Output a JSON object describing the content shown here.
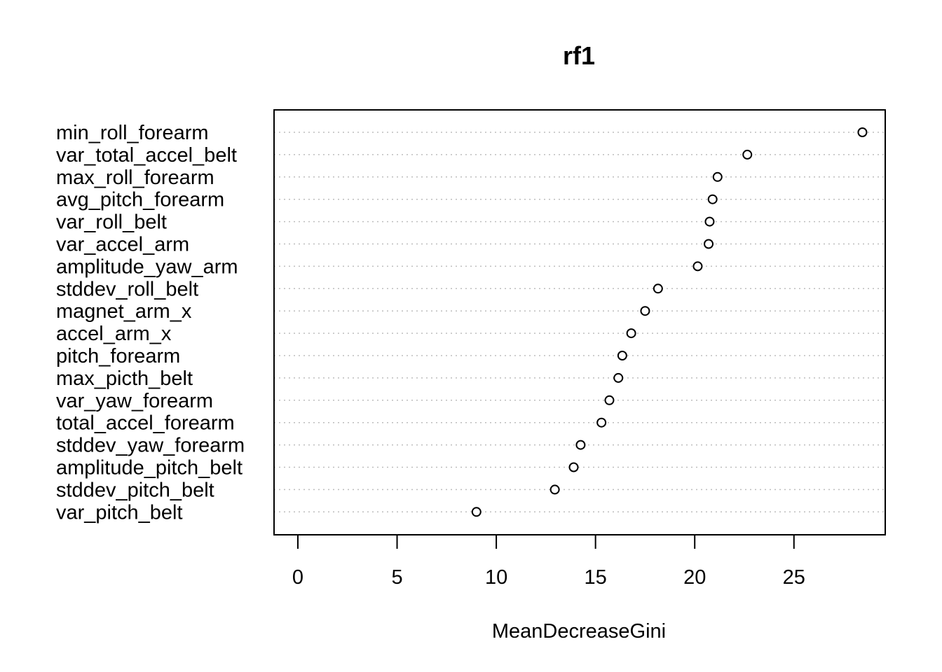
{
  "chart_data": {
    "type": "scatter",
    "title": "rf1",
    "xlabel": "MeanDecreaseGini",
    "ylabel": "",
    "xlim": [
      -1.2,
      29.6
    ],
    "xticks": [
      0,
      5,
      10,
      15,
      20,
      25
    ],
    "grid": "dotted horizontal",
    "point_style": "open circle",
    "categories": [
      "min_roll_forearm",
      "var_total_accel_belt",
      "max_roll_forearm",
      "avg_pitch_forearm",
      "var_roll_belt",
      "var_accel_arm",
      "amplitude_yaw_arm",
      "stddev_roll_belt",
      "magnet_arm_x",
      "accel_arm_x",
      "pitch_forearm",
      "max_picth_belt",
      "var_yaw_forearm",
      "total_accel_forearm",
      "stddev_yaw_forearm",
      "amplitude_pitch_belt",
      "stddev_pitch_belt",
      "var_pitch_belt"
    ],
    "values": [
      28.45,
      22.65,
      21.15,
      20.9,
      20.75,
      20.7,
      20.15,
      18.15,
      17.5,
      16.8,
      16.35,
      16.15,
      15.7,
      15.3,
      14.25,
      13.9,
      12.95,
      9.0
    ]
  }
}
